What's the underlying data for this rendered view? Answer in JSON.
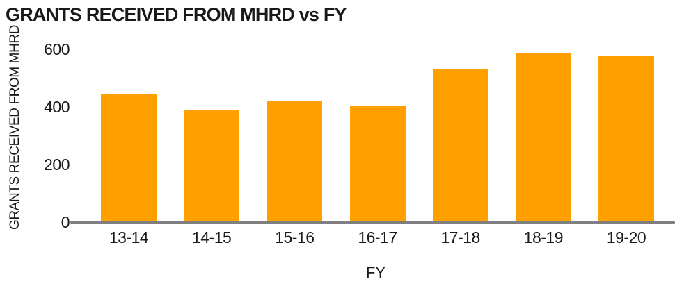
{
  "chart_data": {
    "type": "bar",
    "title": "GRANTS RECEIVED FROM MHRD vs FY",
    "xlabel": "FY",
    "ylabel": "GRANTS RECEIVED FROM MHRD",
    "categories": [
      "13-14",
      "14-15",
      "15-16",
      "16-17",
      "17-18",
      "18-19",
      "19-20"
    ],
    "values": [
      445,
      390,
      420,
      405,
      530,
      585,
      578
    ],
    "ylim": [
      0,
      600
    ],
    "yticks": [
      0,
      200,
      400,
      600
    ],
    "grid": false,
    "legend": false,
    "colors": {
      "bar": "#FFA000",
      "axis_line": "#7f7f7f",
      "text": "#1a1a1a"
    }
  }
}
